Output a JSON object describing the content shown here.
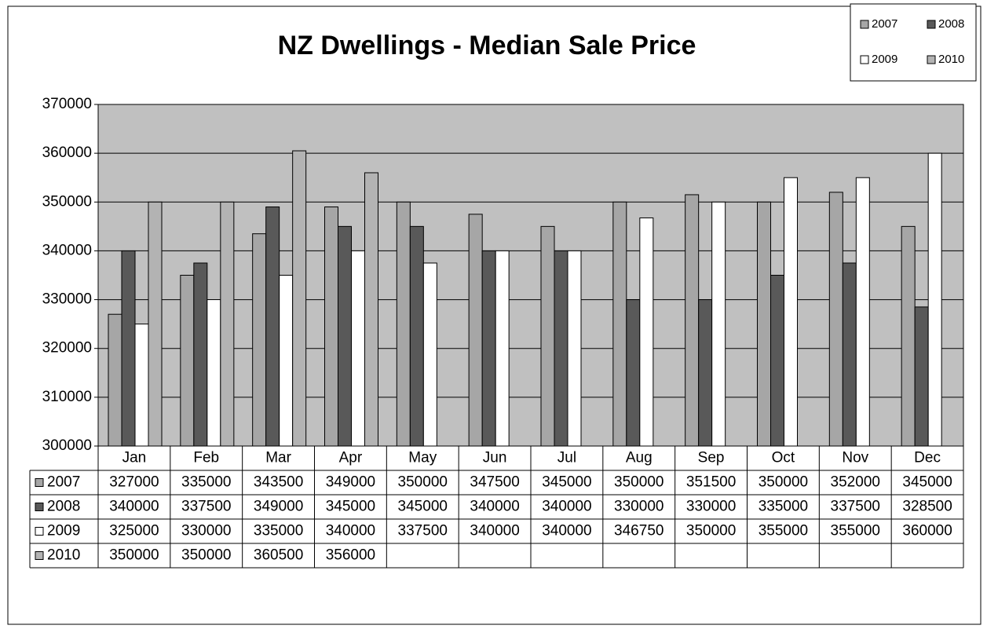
{
  "chart_data": {
    "type": "bar",
    "title": "NZ Dwellings - Median Sale Price",
    "categories": [
      "Jan",
      "Feb",
      "Mar",
      "Apr",
      "May",
      "Jun",
      "Jul",
      "Aug",
      "Sep",
      "Oct",
      "Nov",
      "Dec"
    ],
    "series": [
      {
        "name": "2007",
        "color": "#a6a6a6",
        "values": [
          327000,
          335000,
          343500,
          349000,
          350000,
          347500,
          345000,
          350000,
          351500,
          350000,
          352000,
          345000
        ]
      },
      {
        "name": "2008",
        "color": "#595959",
        "values": [
          340000,
          337500,
          349000,
          345000,
          345000,
          340000,
          340000,
          330000,
          330000,
          335000,
          337500,
          328500
        ]
      },
      {
        "name": "2009",
        "color": "#ffffff",
        "values": [
          325000,
          330000,
          335000,
          340000,
          337500,
          340000,
          340000,
          346750,
          350000,
          355000,
          355000,
          360000
        ]
      },
      {
        "name": "2010",
        "color": "#b3b3b3",
        "values": [
          350000,
          350000,
          360500,
          356000,
          null,
          null,
          null,
          null,
          null,
          null,
          null,
          null
        ]
      }
    ],
    "ylim": [
      300000,
      370000
    ],
    "yticks": [
      300000,
      310000,
      320000,
      330000,
      340000,
      350000,
      360000,
      370000
    ],
    "grid": true,
    "legend": "top-right",
    "plot_background": "#c0c0c0"
  }
}
